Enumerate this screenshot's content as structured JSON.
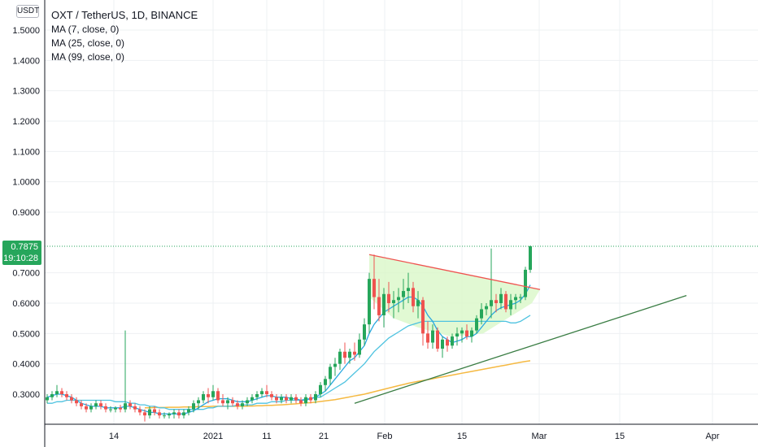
{
  "header": {
    "title": "OXT / TetherUS, 1D, BINANCE",
    "indicators": [
      "MA (7, close, 0)",
      "MA (25, close, 0)",
      "MA (99, close, 0)"
    ]
  },
  "price_axis": {
    "unit_label": "USDT",
    "current_price": "0.7875",
    "countdown": "19:10:28"
  },
  "colors": {
    "up": "#26a65b",
    "down": "#ef5350",
    "ma7": "#2aa8e0",
    "ma25": "#4fc3e0",
    "ma99": "#f5b942",
    "trendline": "#3a7d44",
    "resistance": "#ef5350",
    "triangle_fill": "#d9f7c8",
    "grid": "#eef0f3"
  },
  "chart_data": {
    "type": "candlestick",
    "title": "OXT / TetherUS, 1D, BINANCE",
    "yaxis": {
      "ticks": [
        "1.5000",
        "1.4000",
        "1.3000",
        "1.2000",
        "1.1000",
        "1.0000",
        "0.9000",
        "0.7000",
        "0.6000",
        "0.5000",
        "0.4000",
        "0.3000"
      ],
      "range": [
        0.17,
        1.6
      ]
    },
    "xaxis": {
      "ticks": [
        "14",
        "2021",
        "11",
        "21",
        "Feb",
        "15",
        "Mar",
        "15",
        "Apr"
      ]
    },
    "candles": [
      [
        0.28,
        0.3,
        0.27,
        0.29
      ],
      [
        0.29,
        0.31,
        0.28,
        0.3
      ],
      [
        0.3,
        0.33,
        0.29,
        0.31
      ],
      [
        0.31,
        0.32,
        0.29,
        0.3
      ],
      [
        0.3,
        0.31,
        0.28,
        0.29
      ],
      [
        0.29,
        0.3,
        0.27,
        0.28
      ],
      [
        0.28,
        0.29,
        0.26,
        0.27
      ],
      [
        0.27,
        0.28,
        0.25,
        0.26
      ],
      [
        0.26,
        0.27,
        0.24,
        0.25
      ],
      [
        0.25,
        0.27,
        0.24,
        0.26
      ],
      [
        0.26,
        0.28,
        0.25,
        0.27
      ],
      [
        0.27,
        0.28,
        0.25,
        0.26
      ],
      [
        0.26,
        0.27,
        0.24,
        0.25
      ],
      [
        0.25,
        0.26,
        0.24,
        0.25
      ],
      [
        0.25,
        0.26,
        0.24,
        0.255
      ],
      [
        0.255,
        0.265,
        0.24,
        0.25
      ],
      [
        0.25,
        0.51,
        0.24,
        0.27
      ],
      [
        0.27,
        0.28,
        0.25,
        0.26
      ],
      [
        0.26,
        0.27,
        0.24,
        0.25
      ],
      [
        0.25,
        0.26,
        0.23,
        0.24
      ],
      [
        0.24,
        0.25,
        0.21,
        0.23
      ],
      [
        0.23,
        0.26,
        0.22,
        0.25
      ],
      [
        0.25,
        0.26,
        0.23,
        0.24
      ],
      [
        0.24,
        0.25,
        0.22,
        0.23
      ],
      [
        0.23,
        0.24,
        0.22,
        0.23
      ],
      [
        0.23,
        0.24,
        0.22,
        0.235
      ],
      [
        0.235,
        0.25,
        0.22,
        0.24
      ],
      [
        0.24,
        0.25,
        0.22,
        0.23
      ],
      [
        0.23,
        0.25,
        0.22,
        0.24
      ],
      [
        0.24,
        0.26,
        0.23,
        0.25
      ],
      [
        0.25,
        0.28,
        0.24,
        0.27
      ],
      [
        0.27,
        0.29,
        0.25,
        0.28
      ],
      [
        0.28,
        0.31,
        0.27,
        0.3
      ],
      [
        0.3,
        0.32,
        0.27,
        0.29
      ],
      [
        0.29,
        0.33,
        0.28,
        0.31
      ],
      [
        0.31,
        0.32,
        0.27,
        0.28
      ],
      [
        0.28,
        0.3,
        0.26,
        0.27
      ],
      [
        0.27,
        0.29,
        0.25,
        0.28
      ],
      [
        0.28,
        0.29,
        0.26,
        0.27
      ],
      [
        0.27,
        0.28,
        0.25,
        0.26
      ],
      [
        0.26,
        0.28,
        0.25,
        0.27
      ],
      [
        0.27,
        0.29,
        0.26,
        0.28
      ],
      [
        0.28,
        0.3,
        0.27,
        0.29
      ],
      [
        0.29,
        0.31,
        0.28,
        0.3
      ],
      [
        0.3,
        0.32,
        0.29,
        0.31
      ],
      [
        0.31,
        0.33,
        0.29,
        0.3
      ],
      [
        0.3,
        0.31,
        0.28,
        0.29
      ],
      [
        0.29,
        0.3,
        0.27,
        0.28
      ],
      [
        0.28,
        0.3,
        0.27,
        0.29
      ],
      [
        0.29,
        0.3,
        0.27,
        0.28
      ],
      [
        0.28,
        0.3,
        0.27,
        0.29
      ],
      [
        0.29,
        0.3,
        0.27,
        0.28
      ],
      [
        0.28,
        0.29,
        0.26,
        0.27
      ],
      [
        0.27,
        0.3,
        0.26,
        0.29
      ],
      [
        0.29,
        0.3,
        0.27,
        0.28
      ],
      [
        0.28,
        0.31,
        0.27,
        0.3
      ],
      [
        0.3,
        0.34,
        0.29,
        0.33
      ],
      [
        0.33,
        0.36,
        0.31,
        0.35
      ],
      [
        0.35,
        0.4,
        0.33,
        0.39
      ],
      [
        0.39,
        0.42,
        0.36,
        0.4
      ],
      [
        0.4,
        0.45,
        0.38,
        0.44
      ],
      [
        0.44,
        0.47,
        0.4,
        0.42
      ],
      [
        0.42,
        0.45,
        0.4,
        0.44
      ],
      [
        0.44,
        0.47,
        0.41,
        0.43
      ],
      [
        0.43,
        0.5,
        0.42,
        0.48
      ],
      [
        0.48,
        0.55,
        0.46,
        0.53
      ],
      [
        0.53,
        0.7,
        0.5,
        0.68
      ],
      [
        0.68,
        0.76,
        0.58,
        0.62
      ],
      [
        0.62,
        0.68,
        0.54,
        0.56
      ],
      [
        0.56,
        0.65,
        0.52,
        0.63
      ],
      [
        0.63,
        0.67,
        0.57,
        0.6
      ],
      [
        0.6,
        0.64,
        0.55,
        0.61
      ],
      [
        0.61,
        0.65,
        0.57,
        0.62
      ],
      [
        0.62,
        0.68,
        0.58,
        0.64
      ],
      [
        0.64,
        0.7,
        0.6,
        0.65
      ],
      [
        0.65,
        0.67,
        0.57,
        0.59
      ],
      [
        0.59,
        0.64,
        0.55,
        0.61
      ],
      [
        0.61,
        0.62,
        0.46,
        0.5
      ],
      [
        0.5,
        0.54,
        0.45,
        0.47
      ],
      [
        0.47,
        0.53,
        0.45,
        0.51
      ],
      [
        0.51,
        0.52,
        0.44,
        0.45
      ],
      [
        0.45,
        0.49,
        0.42,
        0.48
      ],
      [
        0.48,
        0.49,
        0.44,
        0.46
      ],
      [
        0.46,
        0.5,
        0.45,
        0.49
      ],
      [
        0.49,
        0.52,
        0.46,
        0.5
      ],
      [
        0.5,
        0.52,
        0.47,
        0.51
      ],
      [
        0.51,
        0.53,
        0.48,
        0.49
      ],
      [
        0.49,
        0.52,
        0.47,
        0.51
      ],
      [
        0.51,
        0.56,
        0.5,
        0.55
      ],
      [
        0.55,
        0.6,
        0.53,
        0.58
      ],
      [
        0.58,
        0.6,
        0.56,
        0.59
      ],
      [
        0.59,
        0.78,
        0.55,
        0.61
      ],
      [
        0.61,
        0.63,
        0.57,
        0.6
      ],
      [
        0.6,
        0.65,
        0.58,
        0.63
      ],
      [
        0.63,
        0.64,
        0.57,
        0.58
      ],
      [
        0.58,
        0.63,
        0.56,
        0.61
      ],
      [
        0.61,
        0.63,
        0.58,
        0.62
      ],
      [
        0.62,
        0.63,
        0.6,
        0.62
      ],
      [
        0.62,
        0.72,
        0.61,
        0.71
      ],
      [
        0.71,
        0.79,
        0.7,
        0.7875
      ]
    ],
    "ma7": [
      0.29,
      0.295,
      0.3,
      0.3,
      0.295,
      0.29,
      0.28,
      0.27,
      0.265,
      0.26,
      0.26,
      0.26,
      0.255,
      0.255,
      0.255,
      0.255,
      0.26,
      0.26,
      0.255,
      0.25,
      0.245,
      0.24,
      0.24,
      0.235,
      0.235,
      0.235,
      0.235,
      0.235,
      0.235,
      0.24,
      0.245,
      0.255,
      0.265,
      0.275,
      0.28,
      0.285,
      0.285,
      0.285,
      0.28,
      0.275,
      0.275,
      0.275,
      0.28,
      0.285,
      0.29,
      0.295,
      0.295,
      0.29,
      0.29,
      0.29,
      0.285,
      0.285,
      0.28,
      0.28,
      0.285,
      0.29,
      0.3,
      0.31,
      0.33,
      0.35,
      0.37,
      0.39,
      0.41,
      0.42,
      0.44,
      0.46,
      0.5,
      0.53,
      0.55,
      0.57,
      0.58,
      0.59,
      0.6,
      0.61,
      0.62,
      0.62,
      0.61,
      0.59,
      0.56,
      0.54,
      0.51,
      0.49,
      0.48,
      0.47,
      0.475,
      0.48,
      0.49,
      0.49,
      0.5,
      0.52,
      0.54,
      0.56,
      0.575,
      0.585,
      0.59,
      0.595,
      0.6,
      0.61,
      0.63,
      0.66
    ],
    "ma25": [
      0.27,
      0.27,
      0.275,
      0.275,
      0.28,
      0.28,
      0.28,
      0.28,
      0.28,
      0.28,
      0.28,
      0.28,
      0.28,
      0.28,
      0.275,
      0.275,
      0.275,
      0.27,
      0.27,
      0.265,
      0.265,
      0.26,
      0.26,
      0.255,
      0.255,
      0.25,
      0.25,
      0.25,
      0.25,
      0.25,
      0.25,
      0.25,
      0.25,
      0.255,
      0.255,
      0.26,
      0.26,
      0.26,
      0.26,
      0.265,
      0.265,
      0.265,
      0.265,
      0.27,
      0.27,
      0.27,
      0.275,
      0.275,
      0.275,
      0.28,
      0.28,
      0.28,
      0.28,
      0.285,
      0.285,
      0.29,
      0.29,
      0.3,
      0.31,
      0.32,
      0.33,
      0.34,
      0.355,
      0.37,
      0.385,
      0.4,
      0.42,
      0.44,
      0.455,
      0.47,
      0.485,
      0.495,
      0.505,
      0.515,
      0.525,
      0.53,
      0.535,
      0.54,
      0.54,
      0.54,
      0.54,
      0.54,
      0.54,
      0.54,
      0.54,
      0.54,
      0.54,
      0.54,
      0.54,
      0.54,
      0.54,
      0.54,
      0.54,
      0.54,
      0.54,
      0.535,
      0.535,
      0.54,
      0.55,
      0.56
    ],
    "ma99": [
      null,
      null,
      null,
      null,
      null,
      null,
      null,
      null,
      null,
      null,
      null,
      null,
      null,
      null,
      null,
      null,
      null,
      null,
      null,
      null,
      0.255,
      0.255,
      0.256,
      0.256,
      0.256,
      0.257,
      0.257,
      0.257,
      0.258,
      0.258,
      0.258,
      0.259,
      0.259,
      0.259,
      0.26,
      0.26,
      0.26,
      0.26,
      0.26,
      0.26,
      0.26,
      0.261,
      0.261,
      0.262,
      0.262,
      0.263,
      0.263,
      0.264,
      0.265,
      0.266,
      0.267,
      0.268,
      0.27,
      0.271,
      0.272,
      0.274,
      0.276,
      0.278,
      0.28,
      0.282,
      0.285,
      0.288,
      0.291,
      0.294,
      0.297,
      0.3,
      0.304,
      0.308,
      0.312,
      0.316,
      0.32,
      0.324,
      0.328,
      0.332,
      0.336,
      0.339,
      0.342,
      0.345,
      0.348,
      0.351,
      0.354,
      0.357,
      0.36,
      0.363,
      0.366,
      0.369,
      0.372,
      0.375,
      0.378,
      0.381,
      0.384,
      0.387,
      0.39,
      0.393,
      0.396,
      0.399,
      0.402,
      0.405,
      0.408,
      0.41
    ],
    "trendline": {
      "from": {
        "i": 63,
        "v": 0.27
      },
      "to": {
        "i": 131,
        "v": 0.625
      }
    },
    "resistance": {
      "from": {
        "i": 66,
        "v": 0.76
      },
      "to": {
        "i": 101,
        "v": 0.645
      }
    },
    "current_price_line": 0.7875
  }
}
